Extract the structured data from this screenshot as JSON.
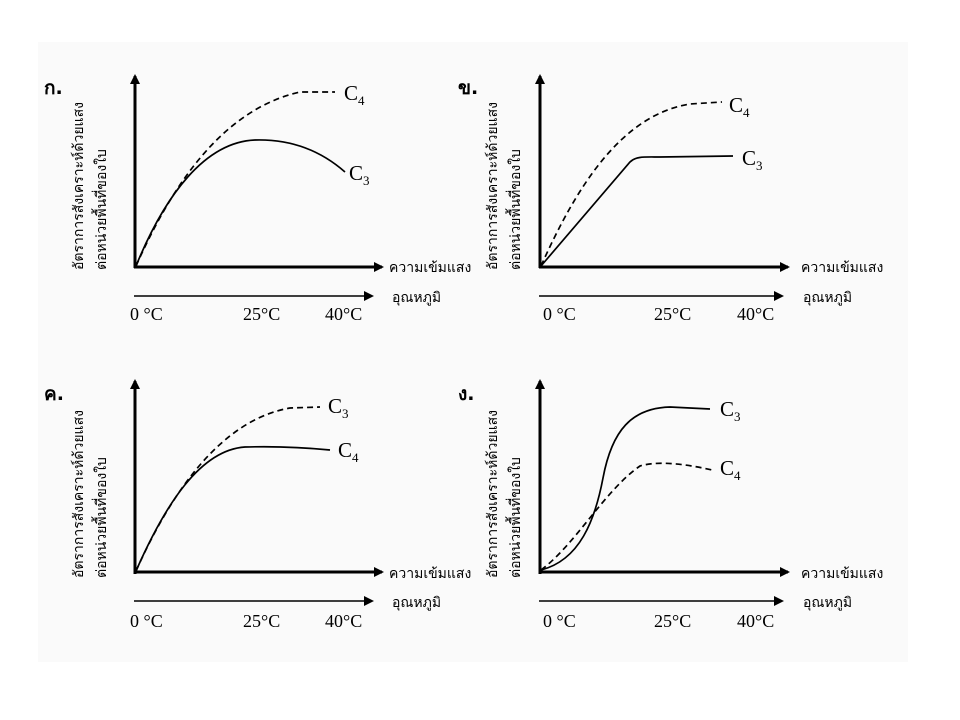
{
  "panels": [
    {
      "label": "ก.",
      "ylabel_line1": "อัตราการสังเคราะห์ด้วยแสง",
      "ylabel_line2": "ต่อหน่วยพื้นที่ของใบ",
      "xlabel": "ความเข้มแสง",
      "temp_label": "อุณหภูมิ",
      "ticks": [
        "0 °C",
        "25°C",
        "40°C"
      ],
      "curves": [
        {
          "name_main": "C",
          "name_sub": "4",
          "style": "dashed"
        },
        {
          "name_main": "C",
          "name_sub": "3",
          "style": "solid"
        }
      ]
    },
    {
      "label": "ข.",
      "ylabel_line1": "อัตราการสังเคราะห์ด้วยแสง",
      "ylabel_line2": "ต่อหน่วยพื้นที่ของใบ",
      "xlabel": "ความเข้มแสง",
      "temp_label": "อุณหภูมิ",
      "ticks": [
        "0 °C",
        "25°C",
        "40°C"
      ],
      "curves": [
        {
          "name_main": "C",
          "name_sub": "4",
          "style": "dashed"
        },
        {
          "name_main": "C",
          "name_sub": "3",
          "style": "solid"
        }
      ]
    },
    {
      "label": "ค.",
      "ylabel_line1": "อัตราการสังเคราะห์ด้วยแสง",
      "ylabel_line2": "ต่อหน่วยพื้นที่ของใบ",
      "xlabel": "ความเข้มแสง",
      "temp_label": "อุณหภูมิ",
      "ticks": [
        "0 °C",
        "25°C",
        "40°C"
      ],
      "curves": [
        {
          "name_main": "C",
          "name_sub": "3",
          "style": "dashed"
        },
        {
          "name_main": "C",
          "name_sub": "4",
          "style": "solid"
        }
      ]
    },
    {
      "label": "ง.",
      "ylabel_line1": "อัตราการสังเคราะห์ด้วยแสง",
      "ylabel_line2": "ต่อหน่วยพื้นที่ของใบ",
      "xlabel": "ความเข้มแสง",
      "temp_label": "อุณหภูมิ",
      "ticks": [
        "0 °C",
        "25°C",
        "40°C"
      ],
      "curves": [
        {
          "name_main": "C",
          "name_sub": "3",
          "style": "solid"
        },
        {
          "name_main": "C",
          "name_sub": "4",
          "style": "dashed"
        }
      ]
    }
  ]
}
